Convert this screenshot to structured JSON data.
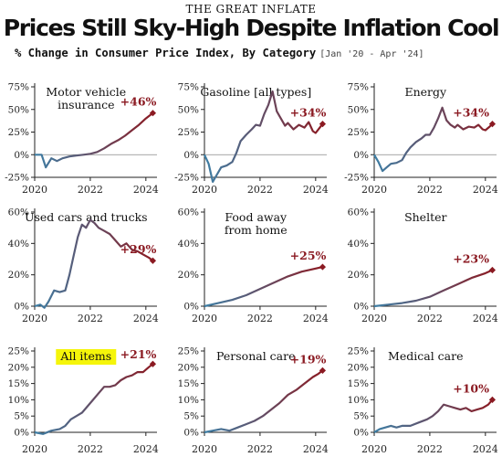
{
  "header": {
    "kicker": "THE GREAT INFLATE",
    "title": "Prices Still Sky-High Despite Inflation Cool",
    "subtitle": "% Change in Consumer Price Index, By Category",
    "date_range": "[Jan '20 - Apr '24]"
  },
  "colors": {
    "start": "#3d7fa6",
    "end": "#8b1a22",
    "highlight": "#f5f50a",
    "axis": "#222222"
  },
  "chart_data": [
    {
      "type": "line",
      "title": "Motor vehicle insurance",
      "title_lines": [
        "Motor vehicle",
        "insurance"
      ],
      "final_label": "+46%",
      "highlight": false,
      "ylim": [
        -25,
        75
      ],
      "yticks": [
        -25,
        0,
        25,
        50,
        75
      ],
      "ytick_labels": [
        "-25%",
        "0%",
        "25%",
        "50%",
        "75%"
      ],
      "xticks": [
        2020,
        2022,
        2024
      ],
      "xtick_labels": [
        "2020",
        "2022",
        "2024"
      ],
      "x": [
        2020.0,
        2020.25,
        2020.4,
        2020.6,
        2020.8,
        2021.0,
        2021.25,
        2021.5,
        2021.75,
        2022.0,
        2022.25,
        2022.5,
        2022.75,
        2023.0,
        2023.25,
        2023.5,
        2023.75,
        2024.0,
        2024.25
      ],
      "values": [
        0,
        0,
        -14,
        -4,
        -7,
        -4,
        -2,
        -1,
        0,
        1,
        3,
        7,
        12,
        16,
        21,
        27,
        33,
        40,
        46
      ]
    },
    {
      "type": "line",
      "title": "Gasoline [all types]",
      "title_lines": [
        "Gasoline [all types]"
      ],
      "final_label": "+34%",
      "highlight": false,
      "ylim": [
        -25,
        75
      ],
      "yticks": [
        -25,
        0,
        25,
        50,
        75
      ],
      "ytick_labels": [
        "-25%",
        "0%",
        "25%",
        "50%",
        "75%"
      ],
      "xticks": [
        2020,
        2022,
        2024
      ],
      "xtick_labels": [
        "2020",
        "2022",
        "2024"
      ],
      "x": [
        2020.0,
        2020.15,
        2020.3,
        2020.45,
        2020.6,
        2020.8,
        2021.0,
        2021.15,
        2021.3,
        2021.5,
        2021.7,
        2021.85,
        2022.0,
        2022.15,
        2022.3,
        2022.45,
        2022.6,
        2022.75,
        2022.9,
        2023.0,
        2023.2,
        2023.4,
        2023.6,
        2023.75,
        2023.9,
        2024.0,
        2024.15,
        2024.25
      ],
      "values": [
        0,
        -10,
        -30,
        -22,
        -14,
        -12,
        -8,
        2,
        15,
        22,
        28,
        33,
        32,
        45,
        55,
        70,
        48,
        40,
        32,
        35,
        28,
        33,
        30,
        36,
        26,
        24,
        30,
        34
      ]
    },
    {
      "type": "line",
      "title": "Energy",
      "title_lines": [
        "Energy"
      ],
      "final_label": "+34%",
      "highlight": false,
      "ylim": [
        -25,
        75
      ],
      "yticks": [
        -25,
        0,
        25,
        50,
        75
      ],
      "ytick_labels": [
        "-25%",
        "0%",
        "25%",
        "50%",
        "75%"
      ],
      "xticks": [
        2020,
        2022,
        2024
      ],
      "xtick_labels": [
        "2020",
        "2022",
        "2024"
      ],
      "x": [
        2020.0,
        2020.15,
        2020.3,
        2020.45,
        2020.6,
        2020.8,
        2021.0,
        2021.15,
        2021.3,
        2021.5,
        2021.7,
        2021.85,
        2022.0,
        2022.15,
        2022.3,
        2022.45,
        2022.6,
        2022.75,
        2022.9,
        2023.0,
        2023.2,
        2023.4,
        2023.6,
        2023.75,
        2023.9,
        2024.0,
        2024.15,
        2024.25
      ],
      "values": [
        0,
        -8,
        -18,
        -14,
        -10,
        -9,
        -6,
        2,
        8,
        14,
        18,
        22,
        22,
        30,
        40,
        52,
        38,
        33,
        30,
        33,
        28,
        31,
        30,
        33,
        28,
        27,
        31,
        34
      ]
    },
    {
      "type": "line",
      "title": "Used cars and trucks",
      "title_lines": [
        "Used cars and trucks"
      ],
      "final_label": "+29%",
      "highlight": false,
      "ylim": [
        0,
        60
      ],
      "yticks": [
        0,
        20,
        40,
        60
      ],
      "ytick_labels": [
        "0%",
        "20%",
        "40%",
        "60%"
      ],
      "xticks": [
        2020,
        2022,
        2024
      ],
      "xtick_labels": [
        "2020",
        "2022",
        "2024"
      ],
      "x": [
        2020.0,
        2020.2,
        2020.35,
        2020.5,
        2020.7,
        2020.9,
        2021.1,
        2021.25,
        2021.4,
        2021.55,
        2021.7,
        2021.85,
        2022.0,
        2022.15,
        2022.3,
        2022.5,
        2022.7,
        2022.9,
        2023.1,
        2023.3,
        2023.5,
        2023.7,
        2023.9,
        2024.1,
        2024.25
      ],
      "values": [
        0,
        1,
        -1,
        3,
        10,
        9,
        10,
        20,
        32,
        44,
        52,
        50,
        55,
        53,
        50,
        48,
        46,
        42,
        38,
        40,
        36,
        35,
        33,
        31,
        29
      ]
    },
    {
      "type": "line",
      "title": "Food away from home",
      "title_lines": [
        "Food away",
        "from home"
      ],
      "final_label": "+25%",
      "highlight": false,
      "ylim": [
        0,
        60
      ],
      "yticks": [
        0,
        20,
        40,
        60
      ],
      "ytick_labels": [
        "0%",
        "20%",
        "40%",
        "60%"
      ],
      "xticks": [
        2020,
        2022,
        2024
      ],
      "xtick_labels": [
        "2020",
        "2022",
        "2024"
      ],
      "x": [
        2020.0,
        2020.5,
        2021.0,
        2021.5,
        2022.0,
        2022.5,
        2023.0,
        2023.5,
        2024.0,
        2024.25
      ],
      "values": [
        0,
        2,
        4,
        7,
        11,
        15,
        19,
        22,
        24,
        25
      ]
    },
    {
      "type": "line",
      "title": "Shelter",
      "title_lines": [
        "Shelter"
      ],
      "final_label": "+23%",
      "highlight": false,
      "ylim": [
        0,
        60
      ],
      "yticks": [
        0,
        20,
        40,
        60
      ],
      "ytick_labels": [
        "0%",
        "20%",
        "40%",
        "60%"
      ],
      "xticks": [
        2020,
        2022,
        2024
      ],
      "xtick_labels": [
        "2020",
        "2022",
        "2024"
      ],
      "x": [
        2020.0,
        2020.5,
        2021.0,
        2021.5,
        2022.0,
        2022.5,
        2023.0,
        2023.5,
        2024.0,
        2024.25
      ],
      "values": [
        0,
        1,
        2,
        3.5,
        6,
        10,
        14,
        18,
        21,
        23
      ]
    },
    {
      "type": "line",
      "title": "All items",
      "title_lines": [
        "All items"
      ],
      "final_label": "+21%",
      "highlight": true,
      "ylim": [
        0,
        25
      ],
      "yticks": [
        0,
        5,
        10,
        15,
        20,
        25
      ],
      "ytick_labels": [
        "0%",
        "5%",
        "10%",
        "15%",
        "20%",
        "25%"
      ],
      "xticks": [
        2020,
        2022,
        2024
      ],
      "xtick_labels": [
        "2020",
        "2022",
        "2024"
      ],
      "x": [
        2020.0,
        2020.3,
        2020.6,
        2020.9,
        2021.1,
        2021.3,
        2021.5,
        2021.7,
        2021.9,
        2022.1,
        2022.3,
        2022.5,
        2022.7,
        2022.9,
        2023.1,
        2023.3,
        2023.5,
        2023.7,
        2023.9,
        2024.1,
        2024.25
      ],
      "values": [
        0,
        -0.5,
        0.5,
        1,
        2,
        4,
        5,
        6,
        8,
        10,
        12,
        14,
        14,
        14.5,
        16,
        17,
        17.5,
        18.5,
        18.5,
        20,
        21
      ]
    },
    {
      "type": "line",
      "title": "Personal care",
      "title_lines": [
        "Personal care"
      ],
      "final_label": "+19%",
      "highlight": false,
      "ylim": [
        0,
        25
      ],
      "yticks": [
        0,
        5,
        10,
        15,
        20,
        25
      ],
      "ytick_labels": [
        "0%",
        "5%",
        "10%",
        "15%",
        "20%",
        "25%"
      ],
      "xticks": [
        2020,
        2022,
        2024
      ],
      "xtick_labels": [
        "2020",
        "2022",
        "2024"
      ],
      "x": [
        2020.0,
        2020.3,
        2020.6,
        2020.9,
        2021.2,
        2021.5,
        2021.8,
        2022.1,
        2022.4,
        2022.7,
        2023.0,
        2023.3,
        2023.6,
        2023.9,
        2024.1,
        2024.25
      ],
      "values": [
        0,
        0.5,
        1,
        0.5,
        1.5,
        2.5,
        3.5,
        5,
        7,
        9,
        11.5,
        13,
        15,
        17,
        18,
        19
      ]
    },
    {
      "type": "line",
      "title": "Medical care",
      "title_lines": [
        "Medical care"
      ],
      "final_label": "+10%",
      "highlight": false,
      "ylim": [
        0,
        25
      ],
      "yticks": [
        0,
        5,
        10,
        15,
        20,
        25
      ],
      "ytick_labels": [
        "0%",
        "5%",
        "10%",
        "15%",
        "20%",
        "25%"
      ],
      "xticks": [
        2020,
        2022,
        2024
      ],
      "xtick_labels": [
        "2020",
        "2022",
        "2024"
      ],
      "x": [
        2020.0,
        2020.2,
        2020.4,
        2020.6,
        2020.8,
        2021.0,
        2021.3,
        2021.6,
        2021.9,
        2022.1,
        2022.3,
        2022.5,
        2022.7,
        2022.9,
        2023.1,
        2023.3,
        2023.5,
        2023.7,
        2023.9,
        2024.1,
        2024.25
      ],
      "values": [
        0,
        1,
        1.5,
        2,
        1.5,
        2,
        2,
        3,
        4,
        5,
        6.5,
        8.5,
        8,
        7.5,
        7,
        7.5,
        6.5,
        7,
        7.5,
        8.5,
        10
      ]
    }
  ]
}
